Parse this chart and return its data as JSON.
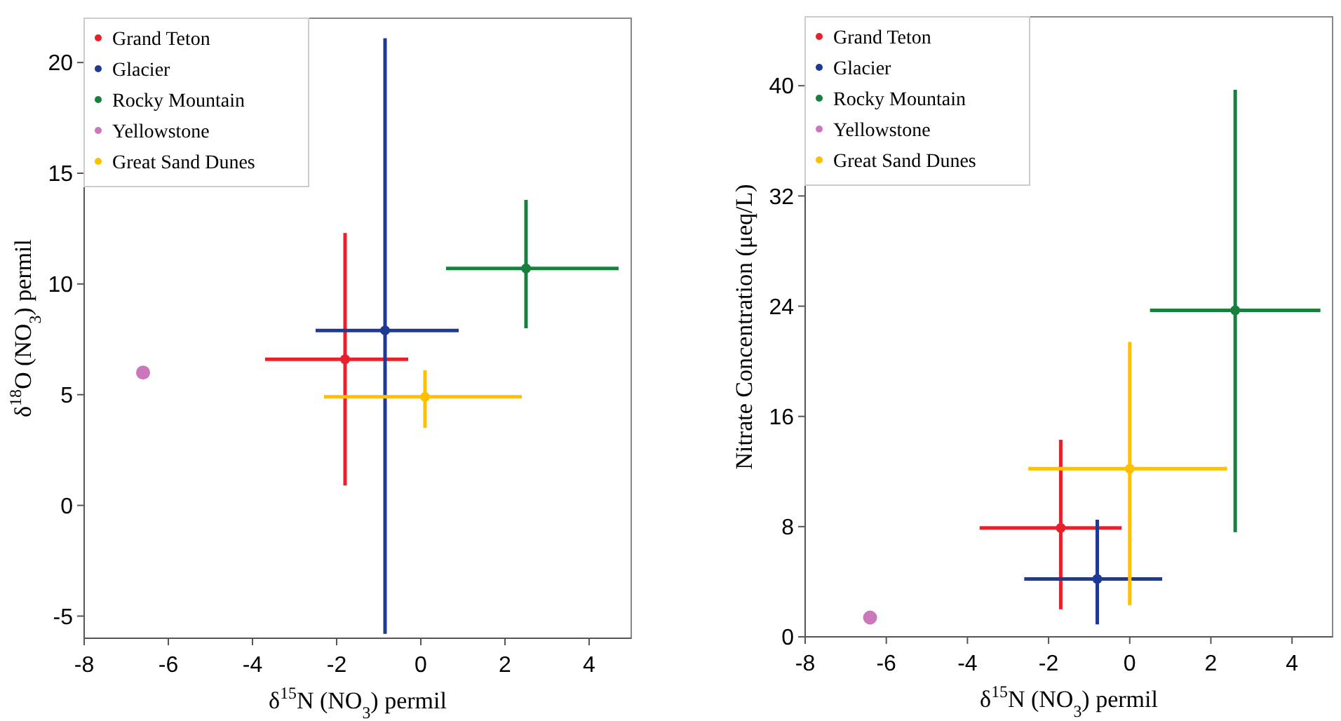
{
  "chart_data": [
    {
      "type": "scatter",
      "xlabel": "δ$^{15}$N (NO$_{3}$) permil",
      "ylabel": "δ$^{18}$O (NO$_{3}$) permil",
      "xlim": [
        -8,
        5
      ],
      "ylim": [
        -6,
        22
      ],
      "xticks": [
        -8,
        -6,
        -4,
        -2,
        0,
        2,
        4
      ],
      "yticks": [
        -5,
        0,
        5,
        10,
        15,
        20
      ],
      "legend": "top left",
      "marker": "circle",
      "grid": false,
      "series": [
        {
          "name": "Grand Teton",
          "color": "#e8202a",
          "x": [
            -1.8
          ],
          "values": [
            6.6
          ],
          "errors": [
            [
              0.9,
              12.3
            ]
          ],
          "xerrors": [
            [
              -3.7,
              -0.3
            ]
          ]
        },
        {
          "name": "Glacier",
          "color": "#1f3a93",
          "x": [
            -0.85
          ],
          "values": [
            7.9
          ],
          "errors": [
            [
              -5.8,
              21.1
            ]
          ],
          "xerrors": [
            [
              -2.5,
              0.9
            ]
          ]
        },
        {
          "name": "Rocky Mountain",
          "color": "#16803c",
          "x": [
            2.5
          ],
          "values": [
            10.7
          ],
          "errors": [
            [
              8,
              13.8
            ]
          ],
          "xerrors": [
            [
              0.6,
              4.7
            ]
          ]
        },
        {
          "name": "Yellowstone",
          "color": "#cc77bb",
          "x": [
            -6.6
          ],
          "values": [
            6
          ]
        },
        {
          "name": "Great Sand Dunes",
          "color": "#ffc000",
          "x": [
            0.1
          ],
          "values": [
            4.9
          ],
          "errors": [
            [
              3.5,
              6.1
            ]
          ],
          "xerrors": [
            [
              -2.3,
              2.4
            ]
          ]
        }
      ]
    },
    {
      "type": "scatter",
      "xlabel": "δ$^{15}$N (NO$_{3}$) permil",
      "ylabel": "Nitrate Concentration (μeq/L)",
      "xlim": [
        -8,
        5
      ],
      "ylim": [
        0,
        45
      ],
      "xticks": [
        -8,
        -6,
        -4,
        -2,
        0,
        2,
        4
      ],
      "yticks": [
        0,
        8,
        16,
        24,
        32,
        40
      ],
      "legend": "top left",
      "marker": "circle",
      "grid": false,
      "series": [
        {
          "name": "Grand Teton",
          "color": "#e8202a",
          "x": [
            -1.7
          ],
          "values": [
            7.9
          ],
          "errors": [
            [
              2,
              14.3
            ]
          ],
          "xerrors": [
            [
              -3.7,
              -0.2
            ]
          ]
        },
        {
          "name": "Glacier",
          "color": "#1f3a93",
          "x": [
            -0.8
          ],
          "values": [
            4.2
          ],
          "errors": [
            [
              0.9,
              8.5
            ]
          ],
          "xerrors": [
            [
              -2.6,
              0.8
            ]
          ]
        },
        {
          "name": "Rocky Mountain",
          "color": "#16803c",
          "x": [
            2.6
          ],
          "values": [
            23.7
          ],
          "errors": [
            [
              7.6,
              39.7
            ]
          ],
          "xerrors": [
            [
              0.5,
              4.7
            ]
          ]
        },
        {
          "name": "Yellowstone",
          "color": "#cc77bb",
          "x": [
            -6.4
          ],
          "values": [
            1.4
          ]
        },
        {
          "name": "Great Sand Dunes",
          "color": "#ffc000",
          "x": [
            0
          ],
          "values": [
            12.2
          ],
          "errors": [
            [
              2.3,
              21.4
            ]
          ],
          "xerrors": [
            [
              -2.5,
              2.4
            ]
          ]
        }
      ]
    }
  ]
}
